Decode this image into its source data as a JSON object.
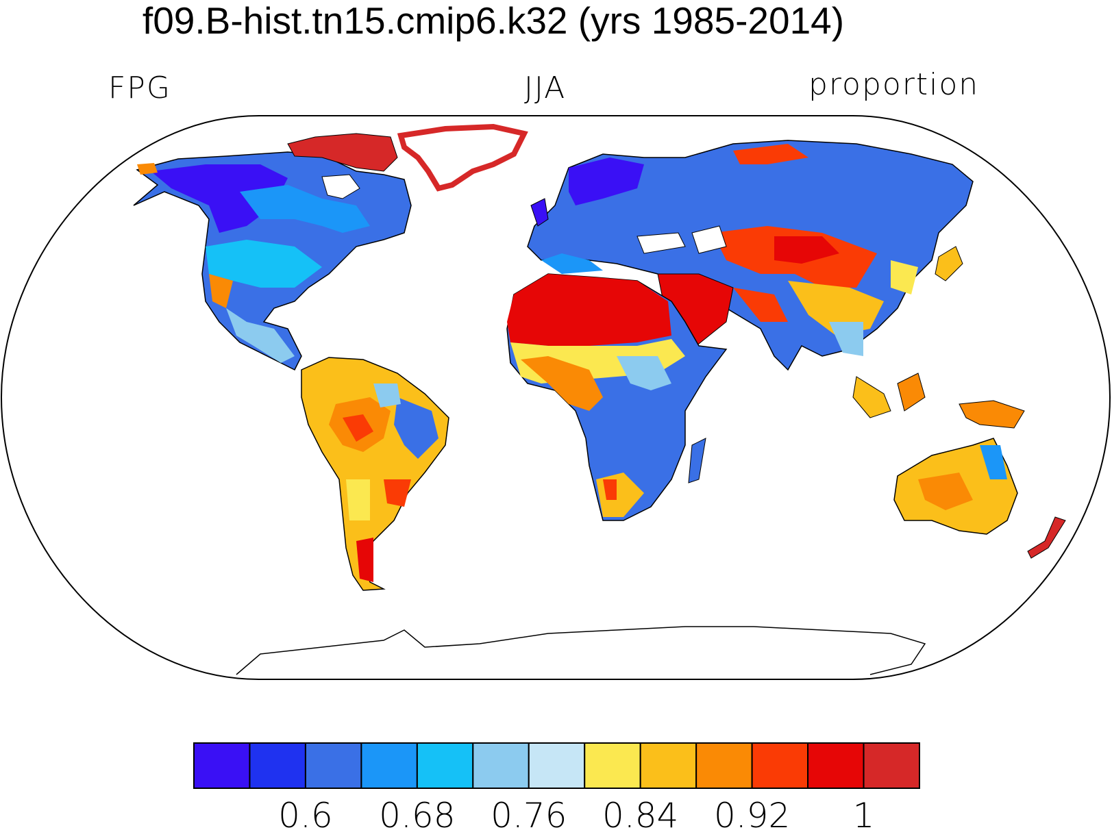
{
  "title": "f09.B-hist.tn15.cmip6.k32 (yrs 1985-2014)",
  "left_label": "FPG",
  "center_label": "JJA",
  "right_label": "proportion",
  "colorbar": {
    "colors": [
      "#3a10f5",
      "#1f32f0",
      "#3a70e6",
      "#1b96f8",
      "#15c1f7",
      "#8ccbef",
      "#c6e6f6",
      "#fbe850",
      "#fbbf1a",
      "#fa8a05",
      "#fa3b05",
      "#e60606",
      "#d62828"
    ],
    "tick_labels": [
      "0.6",
      "0.68",
      "0.76",
      "0.84",
      "0.92",
      "1"
    ]
  },
  "colors": {
    "coast": "#000000",
    "frame": "#000000"
  }
}
